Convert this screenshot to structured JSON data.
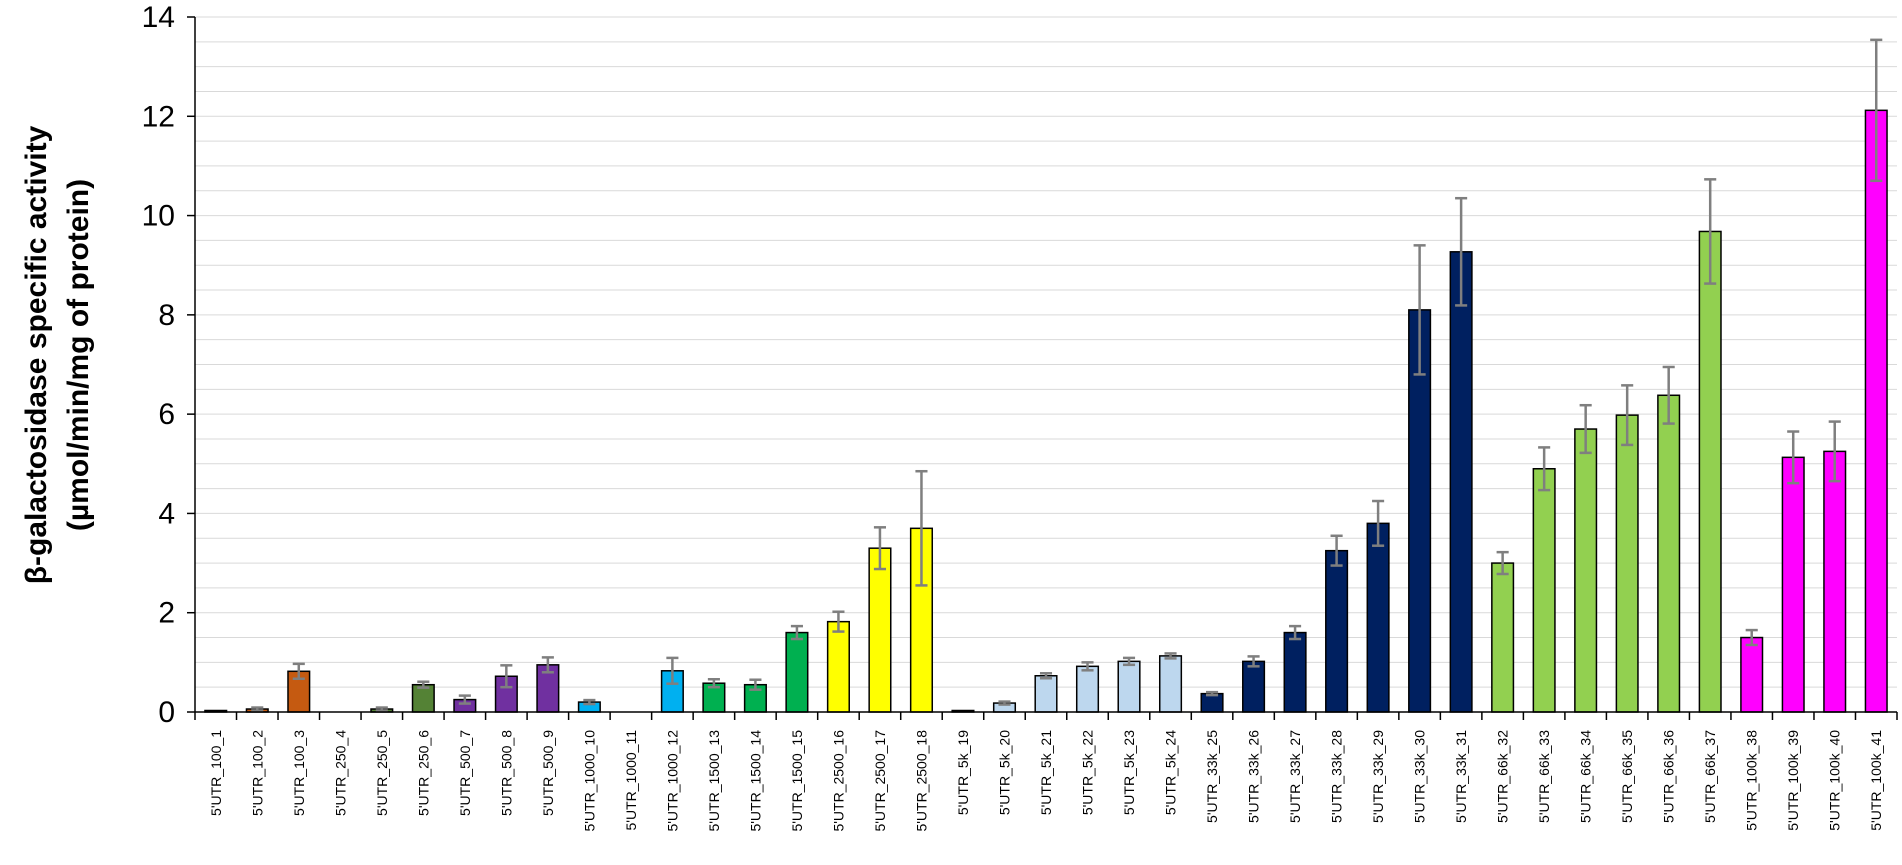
{
  "chart_data": {
    "type": "bar",
    "ylabel_line1": "β-galactosidase  specific activity",
    "ylabel_line2": "(µmol/min/mg of protein)",
    "ylim": [
      0,
      14
    ],
    "yticks": [
      0,
      2,
      4,
      6,
      8,
      10,
      12,
      14
    ],
    "ytick_labels": [
      "0",
      "2",
      "4",
      "6",
      "8",
      "10",
      "12",
      "14"
    ],
    "grid": "horizontal",
    "legend": "none",
    "categories": [
      "5'UTR_100_1",
      "5'UTR_100_2",
      "5'UTR_100_3",
      "5'UTR_250_4",
      "5'UTR_250_5",
      "5'UTR_250_6",
      "5'UTR_500_7",
      "5'UTR_500_8",
      "5'UTR_500_9",
      "5'UTR_1000_10",
      "5'UTR_1000_11",
      "5'UTR_1000_12",
      "5'UTR_1500_13",
      "5'UTR_1500_14",
      "5'UTR_1500_15",
      "5'UTR_2500_16",
      "5'UTR_2500_17",
      "5'UTR_2500_18",
      "5'UTR_5k_19",
      "5'UTR_5k_20",
      "5'UTR_5k_21",
      "5'UTR_5k_22",
      "5'UTR_5k_23",
      "5'UTR_5k_24",
      "5'UTR_33k_25",
      "5'UTR_33k_26",
      "5'UTR_33k_27",
      "5'UTR_33k_28",
      "5'UTR_33k_29",
      "5'UTR_33k_30",
      "5'UTR_33k_31",
      "5'UTR_66k_32",
      "5'UTR_66k_33",
      "5'UTR_66k_34",
      "5'UTR_66k_35",
      "5'UTR_66k_36",
      "5'UTR_66k_37",
      "5'UTR_100k_38",
      "5'UTR_100k_39",
      "5'UTR_100k_40",
      "5'UTR_100k_41"
    ],
    "values": [
      0.02,
      0.06,
      0.82,
      0.0,
      0.06,
      0.55,
      0.25,
      0.72,
      0.95,
      0.2,
      0.0,
      0.83,
      0.58,
      0.55,
      1.6,
      1.82,
      3.3,
      3.7,
      0.02,
      0.18,
      0.73,
      0.92,
      1.02,
      1.13,
      0.37,
      1.02,
      1.6,
      3.25,
      3.8,
      8.1,
      9.27,
      3.0,
      4.9,
      5.7,
      5.98,
      6.38,
      9.68,
      1.5,
      5.13,
      5.25,
      12.12
    ],
    "errors": [
      0.0,
      0.03,
      0.15,
      0.0,
      0.03,
      0.06,
      0.08,
      0.22,
      0.15,
      0.04,
      0.0,
      0.26,
      0.08,
      0.1,
      0.13,
      0.2,
      0.42,
      1.15,
      0.0,
      0.03,
      0.05,
      0.08,
      0.07,
      0.05,
      0.03,
      0.1,
      0.13,
      0.3,
      0.45,
      1.3,
      1.08,
      0.22,
      0.43,
      0.48,
      0.6,
      0.57,
      1.05,
      0.15,
      0.52,
      0.6,
      1.42
    ],
    "colors": [
      "#c55a11",
      "#c55a11",
      "#c55a11",
      "#c55a11",
      "#548235",
      "#548235",
      "#7030a0",
      "#7030a0",
      "#7030a0",
      "#00b0f0",
      "#00b0f0",
      "#00b0f0",
      "#00b050",
      "#00b050",
      "#00b050",
      "#ffff00",
      "#ffff00",
      "#ffff00",
      "#bdd7ee",
      "#bdd7ee",
      "#bdd7ee",
      "#bdd7ee",
      "#bdd7ee",
      "#bdd7ee",
      "#002060",
      "#002060",
      "#002060",
      "#002060",
      "#002060",
      "#002060",
      "#002060",
      "#92d050",
      "#92d050",
      "#92d050",
      "#92d050",
      "#92d050",
      "#92d050",
      "#ff00ff",
      "#ff00ff",
      "#ff00ff",
      "#ff00ff"
    ],
    "bar_outline_color": "#000000",
    "error_bar_color": "#7f7f7f",
    "grid_color": "#d9d9d9"
  }
}
